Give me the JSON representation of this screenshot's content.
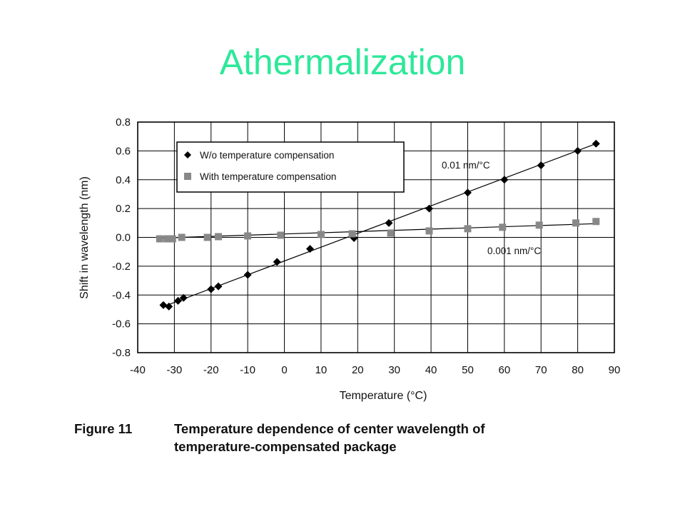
{
  "slide": {
    "title": "Athermalization"
  },
  "caption": {
    "label": "Figure 11",
    "line1": "Temperature dependence of center wavelength of",
    "line2": "temperature-compensated package"
  },
  "chart_data": {
    "type": "scatter",
    "xlabel": "Temperature (°C)",
    "ylabel": "Shift in wavelength (nm)",
    "xlim": [
      -40,
      90
    ],
    "ylim": [
      -0.8,
      0.8
    ],
    "xticks": [
      -40,
      -30,
      -20,
      -10,
      0,
      10,
      20,
      30,
      40,
      50,
      60,
      70,
      80,
      90
    ],
    "yticks": [
      0.8,
      0.6,
      0.4,
      0.2,
      0.0,
      -0.2,
      -0.4,
      -0.6,
      -0.8
    ],
    "ytick_labels": [
      "0.8",
      "0.6",
      "0.4",
      "0.2",
      "0.0",
      "-0.2",
      "-0.4",
      "-0.6",
      "-0.8"
    ],
    "grid": true,
    "legend_position": "top-left",
    "series": [
      {
        "name": "W/o temperature compensation",
        "marker": "diamond",
        "color": "#000000",
        "fit_line": [
          [
            -33,
            -0.48
          ],
          [
            85,
            0.65
          ]
        ],
        "x": [
          -33,
          -31.5,
          -29,
          -27.5,
          -20,
          -18,
          -10,
          -2,
          7,
          19,
          28.5,
          39.5,
          50,
          60,
          70,
          80,
          85
        ],
        "y": [
          -0.47,
          -0.48,
          -0.44,
          -0.42,
          -0.36,
          -0.34,
          -0.26,
          -0.17,
          -0.08,
          -0.005,
          0.1,
          0.2,
          0.31,
          0.4,
          0.5,
          0.6,
          0.65
        ]
      },
      {
        "name": "With temperature compensation",
        "marker": "square",
        "color": "#888888",
        "fit_line": [
          [
            -34,
            -0.005
          ],
          [
            85,
            0.095
          ]
        ],
        "x": [
          -34,
          -32,
          -30.5,
          -28,
          -21,
          -18,
          -10,
          -1,
          10,
          18.5,
          29,
          39.5,
          50,
          59.5,
          69.5,
          79.5,
          85
        ],
        "y": [
          -0.01,
          -0.01,
          -0.01,
          0.0,
          0.0,
          0.005,
          0.01,
          0.015,
          0.02,
          0.025,
          0.03,
          0.045,
          0.06,
          0.07,
          0.085,
          0.1,
          0.11
        ]
      }
    ],
    "annotations": [
      {
        "text": "0.01 nm/°C"
      },
      {
        "text": "0.001 nm/°C"
      }
    ]
  }
}
